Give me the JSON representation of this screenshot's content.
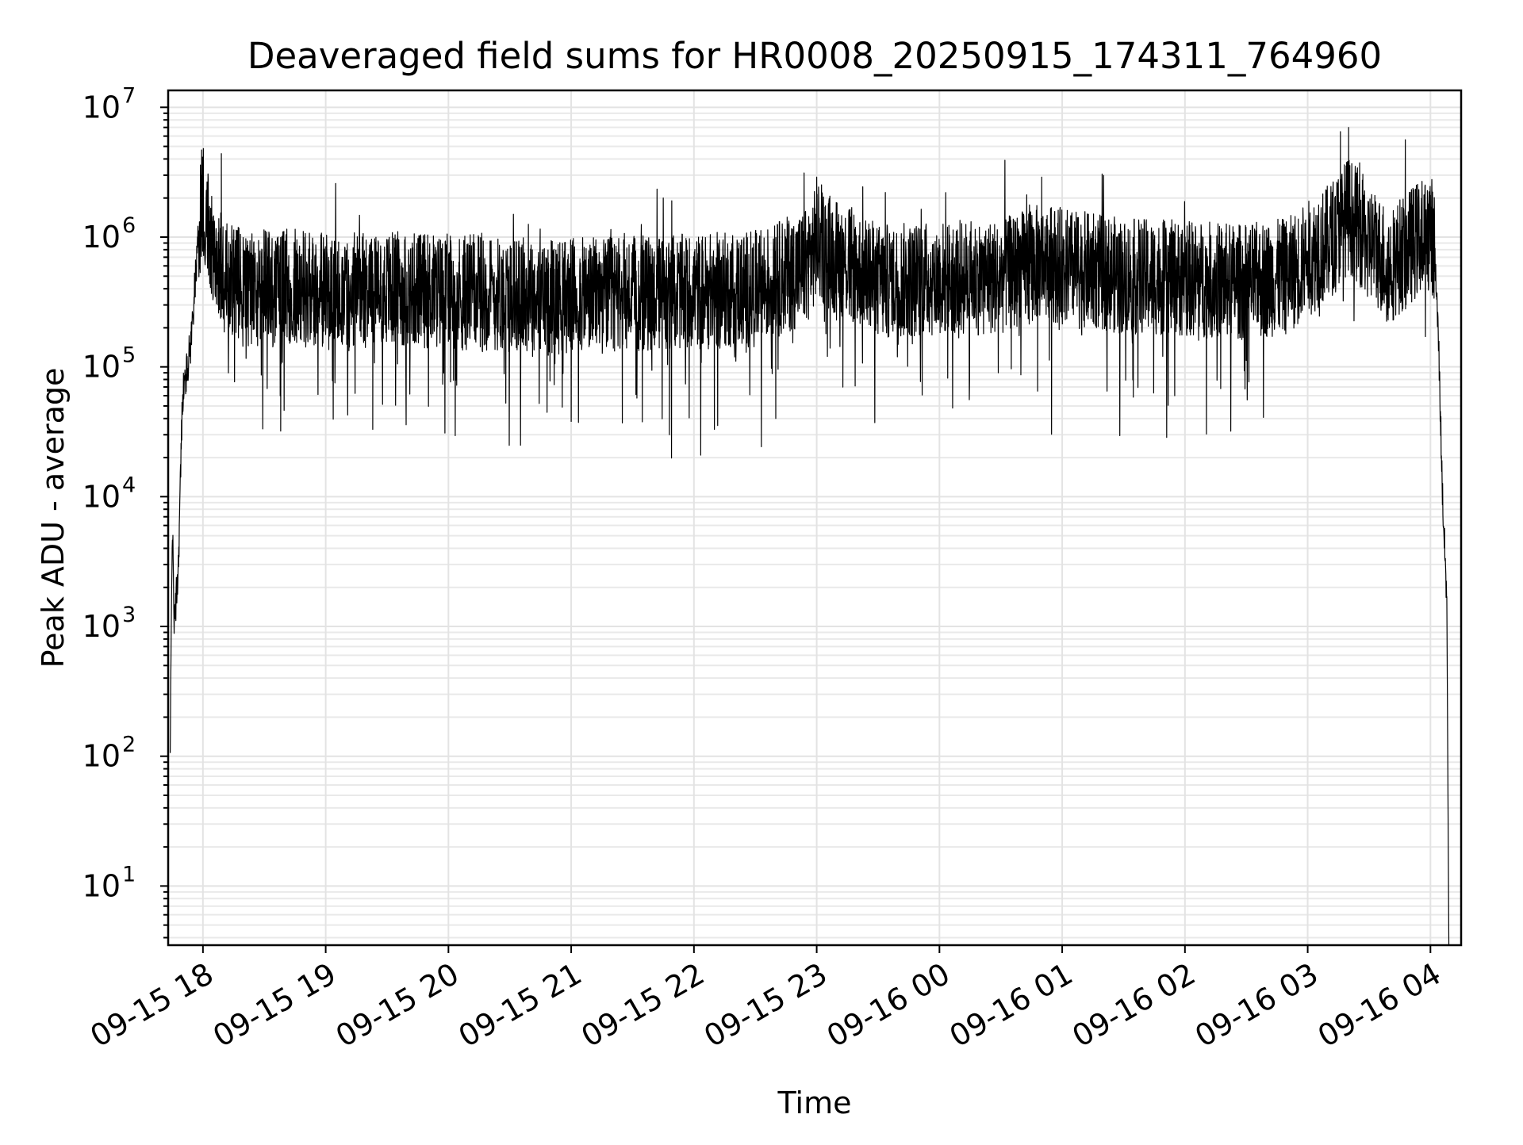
{
  "chart_data": {
    "type": "line",
    "title": "Deaveraged field sums for HR0008_20250915_174311_764960",
    "xlabel": "Time",
    "ylabel": "Peak ADU - average",
    "yscale": "log",
    "ylim": [
      3.5,
      13500000
    ],
    "xlim": [
      "09-15 17:43",
      "09-16 04:15"
    ],
    "x_ticks": [
      "09-15 18",
      "09-15 19",
      "09-15 20",
      "09-15 21",
      "09-15 22",
      "09-15 23",
      "09-16 00",
      "09-16 01",
      "09-16 02",
      "09-16 03",
      "09-16 04"
    ],
    "y_ticks": [
      {
        "base": "10",
        "exp": "1"
      },
      {
        "base": "10",
        "exp": "2"
      },
      {
        "base": "10",
        "exp": "3"
      },
      {
        "base": "10",
        "exp": "4"
      },
      {
        "base": "10",
        "exp": "5"
      },
      {
        "base": "10",
        "exp": "6"
      },
      {
        "base": "10",
        "exp": "7"
      }
    ],
    "grid": true,
    "line_color": "#000000",
    "series": [
      {
        "x": [
          "09-15 17:44",
          "09-15 17:45",
          "09-15 17:46",
          "09-15 17:48",
          "09-15 17:50",
          "09-15 17:52",
          "09-15 17:54",
          "09-15 17:56",
          "09-15 17:58",
          "09-15 18:00",
          "09-15 18:05",
          "09-15 18:10",
          "09-15 18:20",
          "09-15 18:40",
          "09-15 19:00",
          "09-15 19:30",
          "09-15 20:00",
          "09-15 20:30",
          "09-15 21:00",
          "09-15 21:30",
          "09-15 22:00",
          "09-15 22:30",
          "09-15 22:55",
          "09-15 23:00",
          "09-15 23:30",
          "09-16 00:00",
          "09-16 00:30",
          "09-16 00:50",
          "09-16 01:00",
          "09-16 01:30",
          "09-16 02:00",
          "09-16 02:30",
          "09-16 02:50",
          "09-16 03:10",
          "09-16 03:20",
          "09-16 03:40",
          "09-16 04:00",
          "09-16 04:02",
          "09-16 04:04",
          "09-16 04:06",
          "09-16 04:08"
        ],
        "y": [
          100,
          6500,
          1000,
          3000,
          60000,
          90000,
          150000,
          400000,
          1200000,
          2000000,
          900000,
          500000,
          400000,
          420000,
          380000,
          400000,
          380000,
          360000,
          350000,
          360000,
          380000,
          400000,
          600000,
          900000,
          450000,
          480000,
          500000,
          650000,
          600000,
          500000,
          480000,
          450000,
          500000,
          900000,
          1500000,
          600000,
          1200000,
          800000,
          150000,
          9000,
          1600
        ]
      }
    ],
    "peaks": [
      {
        "x": "09-15 17:59",
        "y": 3000000
      },
      {
        "x": "09-15 18:09",
        "y": 4400000
      },
      {
        "x": "09-15 21:45",
        "y": 2000000
      },
      {
        "x": "09-15 23:00",
        "y": 2900000
      },
      {
        "x": "09-16 00:50",
        "y": 2900000
      },
      {
        "x": "09-16 03:16",
        "y": 6500000
      },
      {
        "x": "09-16 03:20",
        "y": 7000000
      },
      {
        "x": "09-16 04:00",
        "y": 2100000
      }
    ],
    "dips": [
      {
        "x": "09-15 18:38",
        "y": 32000
      },
      {
        "x": "09-15 19:23",
        "y": 33000
      },
      {
        "x": "09-15 21:00",
        "y": 38000
      },
      {
        "x": "09-15 21:25",
        "y": 37000
      },
      {
        "x": "09-15 21:48",
        "y": 30000
      },
      {
        "x": "09-15 22:10",
        "y": 33000
      },
      {
        "x": "09-15 22:40",
        "y": 40000
      },
      {
        "x": "09-16 00:48",
        "y": 65000
      },
      {
        "x": "09-16 01:55",
        "y": 60000
      }
    ]
  }
}
